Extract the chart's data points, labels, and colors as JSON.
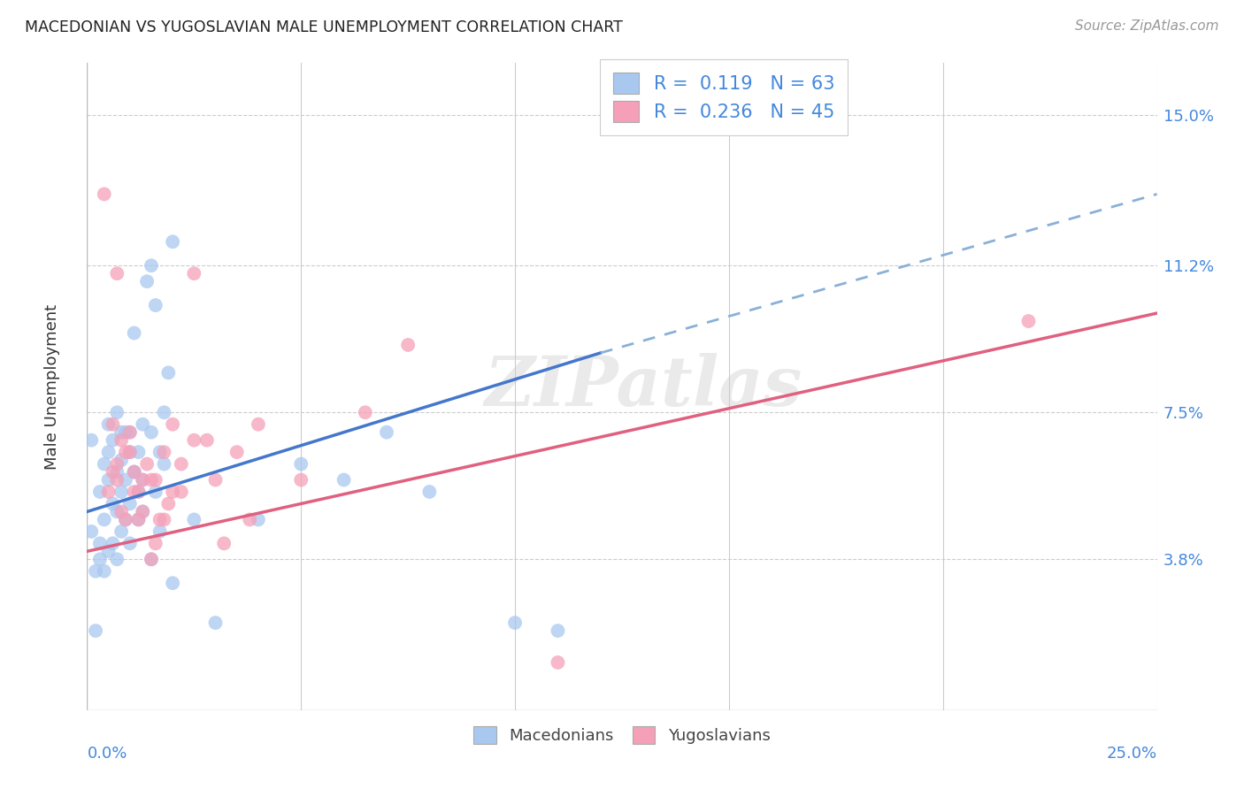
{
  "title": "MACEDONIAN VS YUGOSLAVIAN MALE UNEMPLOYMENT CORRELATION CHART",
  "source": "Source: ZipAtlas.com",
  "ylabel": "Male Unemployment",
  "ytick_labels": [
    "15.0%",
    "11.2%",
    "7.5%",
    "3.8%"
  ],
  "ytick_values": [
    0.15,
    0.112,
    0.075,
    0.038
  ],
  "xlim": [
    0.0,
    0.25
  ],
  "ylim": [
    0.0,
    0.163
  ],
  "color_macedonian": "#a8c8f0",
  "color_yugoslavian": "#f5a0b8",
  "color_blue_line": "#4477cc",
  "color_blue_dash": "#8ab0d8",
  "color_pink_line": "#e06080",
  "color_axis_text": "#4488dd",
  "watermark_text": "ZIPatlas",
  "grid_color": "#cccccc",
  "background_color": "#ffffff",
  "legend_r1": "0.119",
  "legend_n1": "63",
  "legend_r2": "0.236",
  "legend_n2": "45",
  "trendline_mac_x0": 0.0,
  "trendline_mac_y0": 0.05,
  "trendline_mac_x1": 0.12,
  "trendline_mac_y1": 0.09,
  "trendline_mac_dash_x0": 0.12,
  "trendline_mac_dash_y0": 0.09,
  "trendline_mac_dash_x1": 0.25,
  "trendline_mac_dash_y1": 0.13,
  "trendline_yug_x0": 0.0,
  "trendline_yug_y0": 0.04,
  "trendline_yug_x1": 0.25,
  "trendline_yug_y1": 0.1,
  "scatter_mac_x": [
    0.001,
    0.002,
    0.003,
    0.003,
    0.004,
    0.004,
    0.005,
    0.005,
    0.005,
    0.006,
    0.006,
    0.007,
    0.007,
    0.007,
    0.008,
    0.008,
    0.008,
    0.009,
    0.009,
    0.01,
    0.01,
    0.01,
    0.011,
    0.011,
    0.012,
    0.012,
    0.013,
    0.013,
    0.014,
    0.015,
    0.015,
    0.016,
    0.017,
    0.018,
    0.019,
    0.02,
    0.001,
    0.002,
    0.003,
    0.004,
    0.005,
    0.006,
    0.007,
    0.008,
    0.009,
    0.01,
    0.011,
    0.012,
    0.013,
    0.015,
    0.016,
    0.017,
    0.018,
    0.02,
    0.025,
    0.03,
    0.04,
    0.05,
    0.06,
    0.07,
    0.08,
    0.1,
    0.11
  ],
  "scatter_mac_y": [
    0.045,
    0.02,
    0.055,
    0.038,
    0.062,
    0.048,
    0.065,
    0.04,
    0.072,
    0.052,
    0.068,
    0.06,
    0.05,
    0.075,
    0.055,
    0.063,
    0.045,
    0.07,
    0.058,
    0.065,
    0.052,
    0.07,
    0.06,
    0.095,
    0.055,
    0.065,
    0.072,
    0.058,
    0.108,
    0.112,
    0.07,
    0.102,
    0.065,
    0.075,
    0.085,
    0.118,
    0.068,
    0.035,
    0.042,
    0.035,
    0.058,
    0.042,
    0.038,
    0.07,
    0.048,
    0.042,
    0.06,
    0.048,
    0.05,
    0.038,
    0.055,
    0.045,
    0.062,
    0.032,
    0.048,
    0.022,
    0.048,
    0.062,
    0.058,
    0.07,
    0.055,
    0.022,
    0.02
  ],
  "scatter_yug_x": [
    0.004,
    0.005,
    0.006,
    0.007,
    0.007,
    0.008,
    0.009,
    0.01,
    0.011,
    0.012,
    0.013,
    0.014,
    0.015,
    0.016,
    0.017,
    0.018,
    0.019,
    0.02,
    0.022,
    0.025,
    0.028,
    0.03,
    0.032,
    0.035,
    0.038,
    0.006,
    0.007,
    0.008,
    0.009,
    0.01,
    0.011,
    0.012,
    0.013,
    0.015,
    0.016,
    0.018,
    0.02,
    0.022,
    0.025,
    0.04,
    0.05,
    0.065,
    0.075,
    0.11,
    0.22
  ],
  "scatter_yug_y": [
    0.13,
    0.055,
    0.06,
    0.11,
    0.058,
    0.05,
    0.048,
    0.065,
    0.06,
    0.055,
    0.05,
    0.062,
    0.038,
    0.058,
    0.048,
    0.065,
    0.052,
    0.072,
    0.055,
    0.11,
    0.068,
    0.058,
    0.042,
    0.065,
    0.048,
    0.072,
    0.062,
    0.068,
    0.065,
    0.07,
    0.055,
    0.048,
    0.058,
    0.058,
    0.042,
    0.048,
    0.055,
    0.062,
    0.068,
    0.072,
    0.058,
    0.075,
    0.092,
    0.012,
    0.098
  ]
}
